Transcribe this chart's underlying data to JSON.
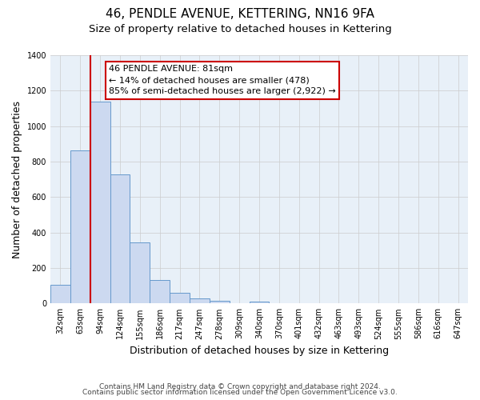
{
  "title_line1": "46, PENDLE AVENUE, KETTERING, NN16 9FA",
  "title_line2": "Size of property relative to detached houses in Kettering",
  "xlabel": "Distribution of detached houses by size in Kettering",
  "ylabel": "Number of detached properties",
  "categories": [
    "32sqm",
    "63sqm",
    "94sqm",
    "124sqm",
    "155sqm",
    "186sqm",
    "217sqm",
    "247sqm",
    "278sqm",
    "309sqm",
    "340sqm",
    "370sqm",
    "401sqm",
    "432sqm",
    "463sqm",
    "493sqm",
    "524sqm",
    "555sqm",
    "586sqm",
    "616sqm",
    "647sqm"
  ],
  "values": [
    107,
    864,
    1140,
    730,
    345,
    130,
    60,
    30,
    17,
    0,
    10,
    0,
    0,
    0,
    0,
    0,
    0,
    0,
    0,
    0,
    0
  ],
  "bar_color": "#ccd9f0",
  "bar_edge_color": "#6699cc",
  "ylim": [
    0,
    1400
  ],
  "yticks": [
    0,
    200,
    400,
    600,
    800,
    1000,
    1200,
    1400
  ],
  "vline_color": "#cc0000",
  "annotation_text_line1": "46 PENDLE AVENUE: 81sqm",
  "annotation_text_line2": "← 14% of detached houses are smaller (478)",
  "annotation_text_line3": "85% of semi-detached houses are larger (2,922) →",
  "annotation_box_color": "#cc0000",
  "annotation_bg_color": "#ffffff",
  "footer_line1": "Contains HM Land Registry data © Crown copyright and database right 2024.",
  "footer_line2": "Contains public sector information licensed under the Open Government Licence v3.0.",
  "background_color": "#ffffff",
  "plot_bg_color": "#e8f0f8",
  "grid_color": "#cccccc",
  "title_fontsize": 11,
  "subtitle_fontsize": 9.5,
  "axis_label_fontsize": 9,
  "tick_fontsize": 7,
  "annotation_fontsize": 8,
  "footer_fontsize": 6.5
}
